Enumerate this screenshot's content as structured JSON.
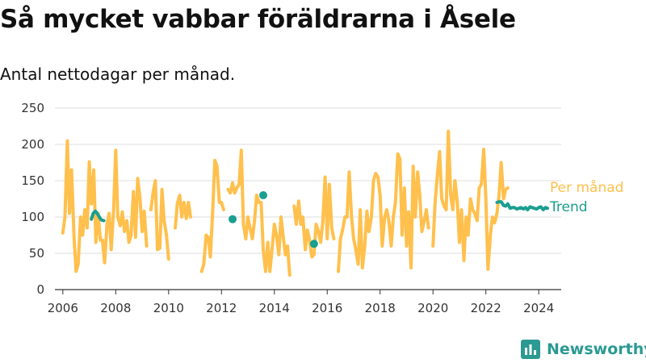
{
  "title": "Så mycket vabbar föräldrarna i Åsele",
  "subtitle": "Antal nettodagar per månad.",
  "brand": {
    "name": "Newsworthy"
  },
  "colors": {
    "monthly": "#FFC04D",
    "trend": "#1A9E8F",
    "grid": "#DDDDDD",
    "axis": "#333333",
    "brand": "#2A9A92"
  },
  "chart_data": {
    "type": "line",
    "title": "Så mycket vabbar föräldrarna i Åsele",
    "subtitle": "Antal nettodagar per månad.",
    "xlabel": "",
    "ylabel": "",
    "ylim": [
      0,
      250
    ],
    "yticks": [
      0,
      50,
      100,
      150,
      200,
      250
    ],
    "xticks": [
      2006,
      2008,
      2010,
      2012,
      2014,
      2016,
      2018,
      2020,
      2022,
      2024
    ],
    "grid": true,
    "legend": "right, inline labels",
    "series": [
      {
        "name": "Per månad",
        "points": [
          [
            2006.0,
            78
          ],
          [
            2006.08,
            100
          ],
          [
            2006.17,
            205
          ],
          [
            2006.25,
            105
          ],
          [
            2006.33,
            165
          ],
          [
            2006.42,
            75
          ],
          [
            2006.5,
            25
          ],
          [
            2006.58,
            35
          ],
          [
            2006.67,
            100
          ],
          [
            2006.75,
            75
          ],
          [
            2006.83,
            110
          ],
          [
            2006.92,
            85
          ],
          [
            2007.0,
            176
          ],
          [
            2007.08,
            118
          ],
          [
            2007.17,
            165
          ],
          [
            2007.25,
            65
          ],
          [
            2007.33,
            105
          ],
          [
            2007.42,
            68
          ],
          [
            2007.5,
            68
          ],
          [
            2007.58,
            37
          ],
          [
            2007.67,
            90
          ],
          [
            2007.75,
            105
          ],
          [
            2007.83,
            55
          ],
          [
            2007.92,
            110
          ],
          [
            2008.0,
            192
          ],
          [
            2008.08,
            100
          ],
          [
            2008.17,
            88
          ],
          [
            2008.25,
            107
          ],
          [
            2008.33,
            80
          ],
          [
            2008.42,
            95
          ],
          [
            2008.5,
            65
          ],
          [
            2008.58,
            75
          ],
          [
            2008.67,
            135
          ],
          [
            2008.75,
            72
          ],
          [
            2008.83,
            153
          ],
          [
            2008.92,
            125
          ],
          [
            2009.0,
            80
          ],
          [
            2009.08,
            108
          ],
          [
            2009.17,
            60
          ],
          [
            2009.25,
            null
          ],
          [
            2009.33,
            110
          ],
          [
            2009.42,
            135
          ],
          [
            2009.5,
            150
          ],
          [
            2009.58,
            55
          ],
          [
            2009.67,
            57
          ],
          [
            2009.75,
            138
          ],
          [
            2009.83,
            95
          ],
          [
            2009.92,
            75
          ],
          [
            2010.0,
            42
          ],
          [
            2010.08,
            null
          ],
          [
            2010.17,
            null
          ],
          [
            2010.25,
            85
          ],
          [
            2010.33,
            118
          ],
          [
            2010.42,
            130
          ],
          [
            2010.5,
            100
          ],
          [
            2010.58,
            120
          ],
          [
            2010.67,
            98
          ],
          [
            2010.75,
            120
          ],
          [
            2010.83,
            100
          ],
          [
            2010.92,
            null
          ],
          [
            2011.0,
            null
          ],
          [
            2011.08,
            null
          ],
          [
            2011.17,
            null
          ],
          [
            2011.25,
            25
          ],
          [
            2011.33,
            35
          ],
          [
            2011.42,
            75
          ],
          [
            2011.5,
            72
          ],
          [
            2011.58,
            45
          ],
          [
            2011.67,
            110
          ],
          [
            2011.75,
            178
          ],
          [
            2011.83,
            170
          ],
          [
            2011.92,
            120
          ],
          [
            2012.0,
            120
          ],
          [
            2012.08,
            110
          ],
          [
            2012.17,
            null
          ],
          [
            2012.25,
            138
          ],
          [
            2012.33,
            133
          ],
          [
            2012.42,
            147
          ],
          [
            2012.5,
            133
          ],
          [
            2012.58,
            140
          ],
          [
            2012.67,
            145
          ],
          [
            2012.75,
            192
          ],
          [
            2012.83,
            90
          ],
          [
            2012.92,
            70
          ],
          [
            2013.0,
            100
          ],
          [
            2013.08,
            85
          ],
          [
            2013.17,
            70
          ],
          [
            2013.25,
            95
          ],
          [
            2013.33,
            130
          ],
          [
            2013.42,
            120
          ],
          [
            2013.5,
            120
          ],
          [
            2013.58,
            55
          ],
          [
            2013.67,
            25
          ],
          [
            2013.75,
            65
          ],
          [
            2013.83,
            25
          ],
          [
            2013.92,
            58
          ],
          [
            2014.0,
            90
          ],
          [
            2014.08,
            75
          ],
          [
            2014.17,
            48
          ],
          [
            2014.25,
            100
          ],
          [
            2014.33,
            75
          ],
          [
            2014.42,
            48
          ],
          [
            2014.5,
            60
          ],
          [
            2014.58,
            20
          ],
          [
            2014.67,
            null
          ],
          [
            2014.75,
            115
          ],
          [
            2014.83,
            90
          ],
          [
            2014.92,
            122
          ],
          [
            2015.0,
            90
          ],
          [
            2015.08,
            100
          ],
          [
            2015.17,
            55
          ],
          [
            2015.25,
            82
          ],
          [
            2015.33,
            68
          ],
          [
            2015.42,
            45
          ],
          [
            2015.5,
            48
          ],
          [
            2015.58,
            90
          ],
          [
            2015.67,
            80
          ],
          [
            2015.75,
            65
          ],
          [
            2015.83,
            92
          ],
          [
            2015.92,
            155
          ],
          [
            2016.0,
            70
          ],
          [
            2016.08,
            145
          ],
          [
            2016.17,
            85
          ],
          [
            2016.25,
            70
          ],
          [
            2016.33,
            null
          ],
          [
            2016.42,
            25
          ],
          [
            2016.5,
            70
          ],
          [
            2016.58,
            82
          ],
          [
            2016.67,
            100
          ],
          [
            2016.75,
            100
          ],
          [
            2016.83,
            162
          ],
          [
            2016.92,
            100
          ],
          [
            2017.0,
            70
          ],
          [
            2017.08,
            55
          ],
          [
            2017.17,
            35
          ],
          [
            2017.25,
            110
          ],
          [
            2017.33,
            30
          ],
          [
            2017.42,
            60
          ],
          [
            2017.5,
            108
          ],
          [
            2017.58,
            80
          ],
          [
            2017.67,
            100
          ],
          [
            2017.75,
            150
          ],
          [
            2017.83,
            160
          ],
          [
            2017.92,
            155
          ],
          [
            2018.0,
            130
          ],
          [
            2018.08,
            60
          ],
          [
            2018.17,
            100
          ],
          [
            2018.25,
            110
          ],
          [
            2018.33,
            95
          ],
          [
            2018.42,
            60
          ],
          [
            2018.5,
            100
          ],
          [
            2018.58,
            120
          ],
          [
            2018.67,
            187
          ],
          [
            2018.75,
            180
          ],
          [
            2018.83,
            75
          ],
          [
            2018.92,
            140
          ],
          [
            2019.0,
            60
          ],
          [
            2019.08,
            107
          ],
          [
            2019.17,
            30
          ],
          [
            2019.25,
            170
          ],
          [
            2019.33,
            100
          ],
          [
            2019.42,
            162
          ],
          [
            2019.5,
            130
          ],
          [
            2019.58,
            80
          ],
          [
            2019.67,
            95
          ],
          [
            2019.75,
            110
          ],
          [
            2019.83,
            85
          ],
          [
            2019.92,
            null
          ],
          [
            2020.0,
            60
          ],
          [
            2020.08,
            120
          ],
          [
            2020.17,
            160
          ],
          [
            2020.25,
            190
          ],
          [
            2020.33,
            125
          ],
          [
            2020.42,
            115
          ],
          [
            2020.5,
            110
          ],
          [
            2020.58,
            218
          ],
          [
            2020.67,
            130
          ],
          [
            2020.75,
            110
          ],
          [
            2020.83,
            150
          ],
          [
            2020.92,
            120
          ],
          [
            2021.0,
            65
          ],
          [
            2021.08,
            110
          ],
          [
            2021.17,
            40
          ],
          [
            2021.25,
            100
          ],
          [
            2021.33,
            75
          ],
          [
            2021.42,
            125
          ],
          [
            2021.5,
            110
          ],
          [
            2021.58,
            105
          ],
          [
            2021.67,
            95
          ],
          [
            2021.75,
            140
          ],
          [
            2021.83,
            145
          ],
          [
            2021.92,
            193
          ],
          [
            2022.0,
            125
          ],
          [
            2022.08,
            28
          ],
          [
            2022.17,
            75
          ],
          [
            2022.25,
            100
          ],
          [
            2022.33,
            92
          ],
          [
            2022.42,
            105
          ],
          [
            2022.5,
            130
          ],
          [
            2022.58,
            175
          ],
          [
            2022.67,
            125
          ],
          [
            2022.75,
            138
          ],
          [
            2022.83,
            140
          ],
          [
            2022.92,
            null
          ]
        ]
      },
      {
        "name": "Trend",
        "points": [
          [
            2007.08,
            97
          ],
          [
            2007.15,
            105
          ],
          [
            2007.23,
            108
          ],
          [
            2007.3,
            105
          ],
          [
            2007.38,
            100
          ],
          [
            2007.45,
            96
          ],
          [
            2007.55,
            95
          ],
          [
            2012.42,
            97
          ],
          [
            2013.58,
            130
          ],
          [
            2015.5,
            63
          ],
          [
            2022.42,
            120
          ],
          [
            2022.5,
            121
          ],
          [
            2022.58,
            121
          ],
          [
            2022.67,
            116
          ],
          [
            2022.75,
            115
          ],
          [
            2022.83,
            118
          ],
          [
            2022.92,
            112
          ],
          [
            2023.0,
            113
          ],
          [
            2023.08,
            113
          ],
          [
            2023.17,
            111
          ],
          [
            2023.25,
            112
          ],
          [
            2023.33,
            113
          ],
          [
            2023.42,
            111
          ],
          [
            2023.5,
            113
          ],
          [
            2023.58,
            110
          ],
          [
            2023.67,
            114
          ],
          [
            2023.75,
            113
          ],
          [
            2023.83,
            112
          ],
          [
            2023.92,
            111
          ],
          [
            2024.0,
            113
          ],
          [
            2024.08,
            114
          ],
          [
            2024.17,
            110
          ],
          [
            2024.25,
            113
          ],
          [
            2024.33,
            112
          ]
        ]
      }
    ]
  }
}
